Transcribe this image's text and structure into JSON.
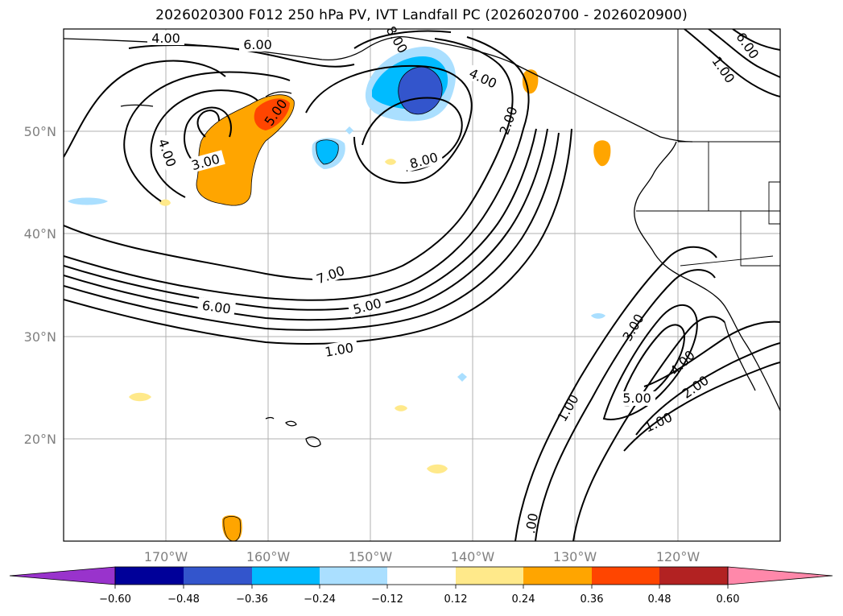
{
  "title": "2026020300 F012 250 hPa PV, IVT Landfall PC (2026020700 - 2026020900)",
  "lat_labels": [
    "50°N",
    "40°N",
    "30°N",
    "20°N"
  ],
  "lon_labels": [
    "170°W",
    "160°W",
    "150°W",
    "140°W",
    "130°W",
    "120°W"
  ],
  "contour_labels": [
    "4.00",
    "6.00",
    "8.00",
    "4.00",
    "2.00",
    "5.00",
    "4.00",
    "3.00",
    "8.00",
    "7.00",
    "6.00",
    "5.00",
    "1.00",
    "3.00",
    "4.00",
    "5.00",
    "2.00",
    "1.00",
    "1.00",
    ".00",
    "6.00",
    "1.00"
  ],
  "colorbar": {
    "colors": [
      "#9933cc",
      "#000099",
      "#3355cc",
      "#00bbff",
      "#aadfff",
      "#ffffff",
      "#ffe98a",
      "#ffa500",
      "#ff4500",
      "#b22222",
      "#ff88aa"
    ],
    "ticks": [
      "−0.60",
      "−0.48",
      "−0.36",
      "−0.24",
      "−0.12",
      "0.12",
      "0.24",
      "0.36",
      "0.48",
      "0.60"
    ]
  }
}
